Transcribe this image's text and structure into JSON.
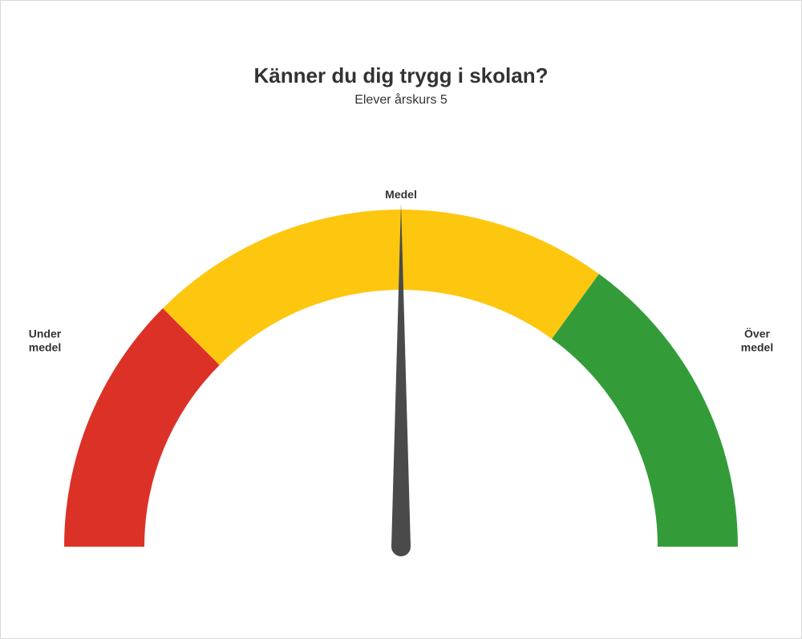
{
  "title": "Känner du dig trygg i skolan?",
  "subtitle": "Elever årskurs 5",
  "gauge": {
    "type": "gauge",
    "min": 0,
    "max": 100,
    "value": 50,
    "segments": [
      {
        "to": 25,
        "color": "#dc3127"
      },
      {
        "to": 70,
        "color": "#fdc710"
      },
      {
        "to": 100,
        "color": "#339c39"
      }
    ],
    "needle_color": "#4a4a4a",
    "background_color": "#ffffff",
    "outer_radius": 420,
    "inner_radius": 320,
    "labels": {
      "top": "Medel",
      "left": "Under\nmedel",
      "right": "Över\nmedel"
    },
    "label_fontsize": 14,
    "label_fontweight": "700",
    "label_color": "#333333",
    "title_fontsize": 26,
    "title_fontweight": "700",
    "subtitle_fontsize": 16
  }
}
